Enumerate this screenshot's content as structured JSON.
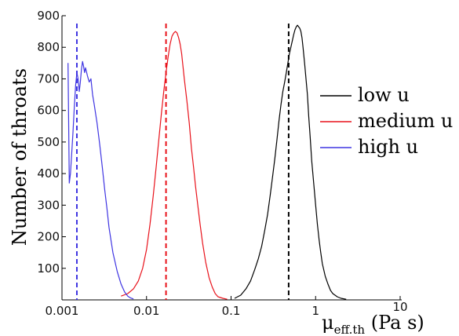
{
  "chart_data": {
    "type": "line",
    "xscale": "log",
    "xlim": [
      0.001,
      10
    ],
    "ylim": [
      0,
      900
    ],
    "x_ticks": [
      0.001,
      0.01,
      0.1,
      1,
      10
    ],
    "x_tick_labels": [
      "0.001",
      "0.01",
      "0.1",
      "1",
      "10"
    ],
    "y_ticks": [
      100,
      200,
      300,
      400,
      500,
      600,
      700,
      800,
      900
    ],
    "y_tick_labels": [
      "100",
      "200",
      "300",
      "400",
      "500",
      "600",
      "700",
      "800",
      "900"
    ],
    "ylabel": "Number of throats",
    "xlabel": {
      "symbol": "μ",
      "subscript": "eff.th",
      "unit": " (Pa s)"
    },
    "legend_position": "right",
    "grid": false,
    "series": [
      {
        "name": "low u",
        "color": "#000000",
        "mean_line": 0.48,
        "x": [
          0.11,
          0.13,
          0.15,
          0.17,
          0.19,
          0.21,
          0.23,
          0.25,
          0.27,
          0.29,
          0.31,
          0.33,
          0.35,
          0.37,
          0.39,
          0.41,
          0.43,
          0.45,
          0.47,
          0.49,
          0.51,
          0.53,
          0.55,
          0.57,
          0.59,
          0.61,
          0.63,
          0.65,
          0.67,
          0.69,
          0.71,
          0.74,
          0.77,
          0.8,
          0.83,
          0.86,
          0.9,
          0.95,
          1.0,
          1.05,
          1.1,
          1.15,
          1.2,
          1.3,
          1.4,
          1.5,
          1.6,
          1.8,
          2.0,
          2.3
        ],
        "values": [
          5,
          15,
          35,
          60,
          95,
          130,
          170,
          220,
          270,
          330,
          390,
          450,
          510,
          570,
          620,
          660,
          690,
          720,
          750,
          780,
          800,
          820,
          840,
          855,
          865,
          870,
          865,
          860,
          850,
          830,
          800,
          750,
          700,
          650,
          580,
          520,
          440,
          370,
          300,
          240,
          190,
          150,
          115,
          75,
          50,
          30,
          20,
          10,
          5,
          2
        ]
      },
      {
        "name": "medium u",
        "color": "#e8121b",
        "mean_line": 0.017,
        "x": [
          0.005,
          0.006,
          0.007,
          0.008,
          0.009,
          0.01,
          0.011,
          0.012,
          0.013,
          0.014,
          0.015,
          0.016,
          0.017,
          0.018,
          0.019,
          0.02,
          0.021,
          0.022,
          0.023,
          0.024,
          0.025,
          0.026,
          0.027,
          0.028,
          0.03,
          0.032,
          0.034,
          0.036,
          0.038,
          0.04,
          0.043,
          0.046,
          0.05,
          0.055,
          0.06,
          0.065,
          0.07,
          0.08,
          0.09
        ],
        "values": [
          12,
          20,
          35,
          60,
          100,
          160,
          240,
          330,
          420,
          510,
          590,
          660,
          720,
          770,
          810,
          835,
          845,
          850,
          845,
          830,
          810,
          780,
          740,
          700,
          630,
          560,
          480,
          420,
          360,
          310,
          240,
          180,
          120,
          70,
          40,
          20,
          10,
          5,
          2
        ]
      },
      {
        "name": "high u",
        "color": "#3f35e2",
        "mean_line": 0.0015,
        "x": [
          0.00118,
          0.00122,
          0.00126,
          0.0013,
          0.00135,
          0.0014,
          0.00145,
          0.0015,
          0.00155,
          0.0016,
          0.00165,
          0.0017,
          0.00175,
          0.0018,
          0.00185,
          0.0019,
          0.002,
          0.0021,
          0.0022,
          0.0023,
          0.0024,
          0.0026,
          0.0028,
          0.003,
          0.0032,
          0.0034,
          0.0036,
          0.004,
          0.0045,
          0.005,
          0.0055,
          0.006,
          0.0065,
          0.007
        ],
        "values": [
          750,
          370,
          400,
          460,
          530,
          610,
          680,
          720,
          700,
          660,
          690,
          730,
          755,
          740,
          720,
          735,
          710,
          690,
          700,
          650,
          620,
          560,
          490,
          420,
          350,
          290,
          230,
          150,
          90,
          50,
          25,
          12,
          6,
          3
        ]
      }
    ]
  }
}
